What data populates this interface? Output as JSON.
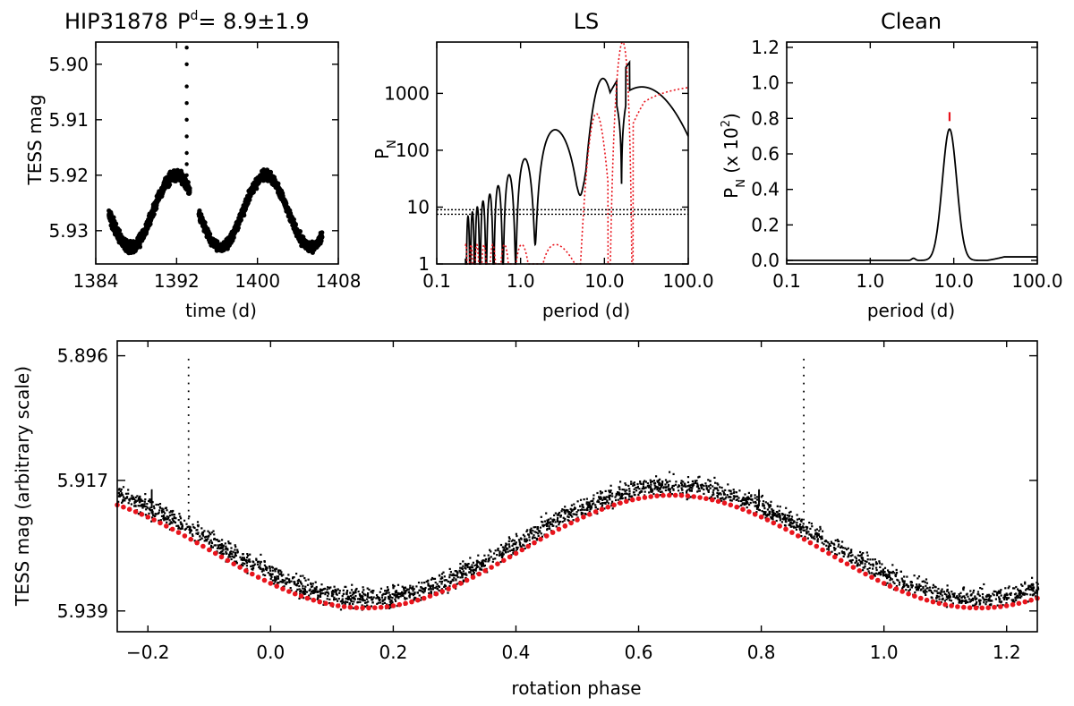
{
  "chart_data": [
    {
      "id": "lc",
      "type": "scatter",
      "title_star": "HIP31878",
      "title_p": "P",
      "title_sup": "d",
      "title_value": "=  8.9±1.9",
      "xlabel": "time (d)",
      "ylabel": "TESS mag",
      "xlim": [
        1384,
        1408
      ],
      "ylim": [
        5.936,
        5.896
      ],
      "xticks": [
        "1384",
        "1392",
        "1400",
        "1408"
      ],
      "yticks": [
        "5.90",
        "5.91",
        "5.92",
        "5.93"
      ],
      "period_days": 8.9,
      "segments": [
        [
          1385.3,
          1393.3
        ],
        [
          1394.2,
          1406.4
        ]
      ],
      "mean_mag": 5.9265,
      "amplitude_mag": 0.0065,
      "peak_time": 1391.9,
      "flare_time": 1393.0,
      "flare_mags": [
        5.897,
        5.9,
        5.904,
        5.907,
        5.91,
        5.913,
        5.916,
        5.918,
        5.92
      ],
      "color": "#000000"
    },
    {
      "id": "ls",
      "type": "line",
      "title": "LS",
      "xlabel": "period (d)",
      "ylabel": "P",
      "ylabel_sub": "N",
      "xscale": "log",
      "yscale": "log",
      "xlim": [
        0.1,
        100
      ],
      "ylim": [
        1,
        8000
      ],
      "xticks": [
        "0.1",
        "1.0",
        "10.0",
        "100.0"
      ],
      "yticks": [
        "1",
        "10",
        "100",
        "1000"
      ],
      "peaks": [
        {
          "period": 8.9,
          "power": 6200
        },
        {
          "period": 28,
          "power": 1300
        },
        {
          "period": 5.5,
          "power": 850
        },
        {
          "period": 3.6,
          "power": 250
        }
      ],
      "fap_levels": [
        9,
        7.5
      ],
      "series": [
        {
          "color": "#000000",
          "style": "solid"
        },
        {
          "color": "#e8141c",
          "style": "dotted"
        }
      ],
      "window_peak_period": 8.6
    },
    {
      "id": "clean",
      "type": "line",
      "title": "Clean",
      "xlabel": "period (d)",
      "ylabel": "P",
      "ylabel_sub": "N",
      "ylabel_rest": " (x 10",
      "ylabel_sup": "2",
      "ylabel_end": ")",
      "xscale": "log",
      "xlim": [
        0.1,
        100
      ],
      "ylim": [
        -0.02,
        1.23
      ],
      "xticks": [
        "0.1",
        "1.0",
        "10.0",
        "100.0"
      ],
      "yticks": [
        "0.0",
        "0.2",
        "0.4",
        "0.6",
        "0.8",
        "1.0",
        "1.2"
      ],
      "peak": {
        "period": 8.9,
        "power": 0.74
      },
      "marker": {
        "period": 8.9,
        "power": 0.81,
        "color": "#e8141c"
      },
      "color": "#000000"
    },
    {
      "id": "phase",
      "type": "scatter",
      "xlabel": "rotation phase",
      "ylabel": "TESS mag (arbitrary scale)",
      "xlim": [
        -0.25,
        1.25
      ],
      "ylim": [
        5.9425,
        5.8935
      ],
      "xticks": [
        "−0.2",
        "0.0",
        "0.2",
        "0.4",
        "0.6",
        "0.8",
        "1.0",
        "1.2"
      ],
      "yticks": [
        "5.896",
        "5.917",
        "5.939"
      ],
      "mean_mag": 5.929,
      "amplitude_mag": 0.0095,
      "min_phase": 0.155,
      "spikes": [
        {
          "phase": -0.135,
          "top": 5.8965
        },
        {
          "phase": 0.868,
          "top": 5.8965
        },
        {
          "phase": -0.195,
          "top": 5.9185
        },
        {
          "phase": 0.795,
          "top": 5.9185
        }
      ],
      "points_color": "#000000",
      "fit_color": "#e8141c"
    }
  ]
}
